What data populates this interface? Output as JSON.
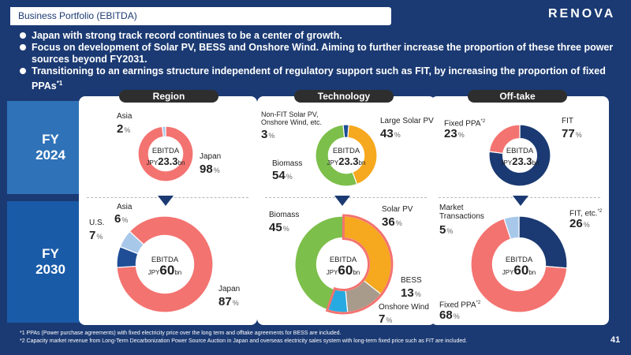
{
  "header": {
    "title": "Business Portfolio (EBITDA)",
    "logo": "RENOVA"
  },
  "bullets": [
    "Japan with strong track record continues to be a center of growth.",
    "Focus on development of Solar PV, BESS and Onshore Wind. Aiming to further increase the proportion of these three power sources beyond FY2031.",
    "Transitioning to an earnings structure independent of regulatory support such as FIT, by increasing the proportion of fixed PPAs"
  ],
  "bullet_sup": "*1",
  "fy": {
    "fy2024": "FY\n2024",
    "fy2030": "FY\n2030"
  },
  "panels": {
    "region": "Region",
    "technology": "Technology",
    "offtake": "Off-take"
  },
  "center": {
    "ebitda": "EBITDA",
    "jpy": "JPY",
    "bn": "bn",
    "v2024": "23.3",
    "v2030": "60"
  },
  "pct_sign": "%",
  "labels": {
    "asia": "Asia",
    "japan": "Japan",
    "us": "U.S.",
    "nonfit": "Non-FIT Solar PV,\nOnshore Wind, etc.",
    "large_solar": "Large Solar PV",
    "biomass": "Biomass",
    "solar": "Solar PV",
    "bess": "BESS",
    "onshore": "Onshore Wind",
    "fixed_ppa": "Fixed PPA",
    "fit": "FIT",
    "market": "Market\nTransactions",
    "fit_etc": "FIT, etc.",
    "sup2": "*2"
  },
  "values": {
    "r24_asia": "2",
    "r24_japan": "98",
    "r30_us": "7",
    "r30_asia": "6",
    "r30_japan": "87",
    "t24_nonfit": "3",
    "t24_large": "43",
    "t24_bio": "54",
    "t30_bio": "45",
    "t30_solar": "36",
    "t30_bess": "13",
    "t30_wind": "7",
    "o24_ppa": "23",
    "o24_fit": "77",
    "o30_market": "5",
    "o30_fit": "26",
    "o30_ppa": "68"
  },
  "footnotes": [
    "*1 PPAs (Power purchase agreements) with fixed electricity price over the long term and offtake agreements for BESS are included.",
    "*2 Capacity market revenue from Long-Term Decarbonization Power Source Auction in Japan and overseas electricity sales system with long-term fixed price such as FIT are included."
  ],
  "page_number": "41",
  "colors": {
    "navy": "#1b3a73",
    "salmon": "#f37370",
    "lightblue": "#a8c8ea",
    "green": "#7cbf4a",
    "orange": "#f6a81e",
    "taupe": "#a89b8c",
    "cyan": "#27a9e1",
    "darknavy": "#1f4e96"
  },
  "chart_data": [
    {
      "type": "pie",
      "title": "Region FY2024",
      "categories": [
        "Japan",
        "Asia"
      ],
      "values": [
        98,
        2
      ]
    },
    {
      "type": "pie",
      "title": "Region FY2030",
      "categories": [
        "Japan",
        "U.S.",
        "Asia"
      ],
      "values": [
        87,
        7,
        6
      ]
    },
    {
      "type": "pie",
      "title": "Technology FY2024",
      "categories": [
        "Non-FIT Solar PV, Onshore Wind, etc.",
        "Large Solar PV",
        "Biomass"
      ],
      "values": [
        3,
        43,
        54
      ]
    },
    {
      "type": "pie",
      "title": "Technology FY2030",
      "categories": [
        "Solar PV",
        "BESS",
        "Onshore Wind",
        "Biomass"
      ],
      "values": [
        36,
        13,
        7,
        45
      ]
    },
    {
      "type": "pie",
      "title": "Off-take FY2024",
      "categories": [
        "FIT",
        "Fixed PPA"
      ],
      "values": [
        77,
        23
      ]
    },
    {
      "type": "pie",
      "title": "Off-take FY2030",
      "categories": [
        "FIT, etc.",
        "Fixed PPA",
        "Market Transactions"
      ],
      "values": [
        26,
        68,
        5
      ]
    }
  ]
}
